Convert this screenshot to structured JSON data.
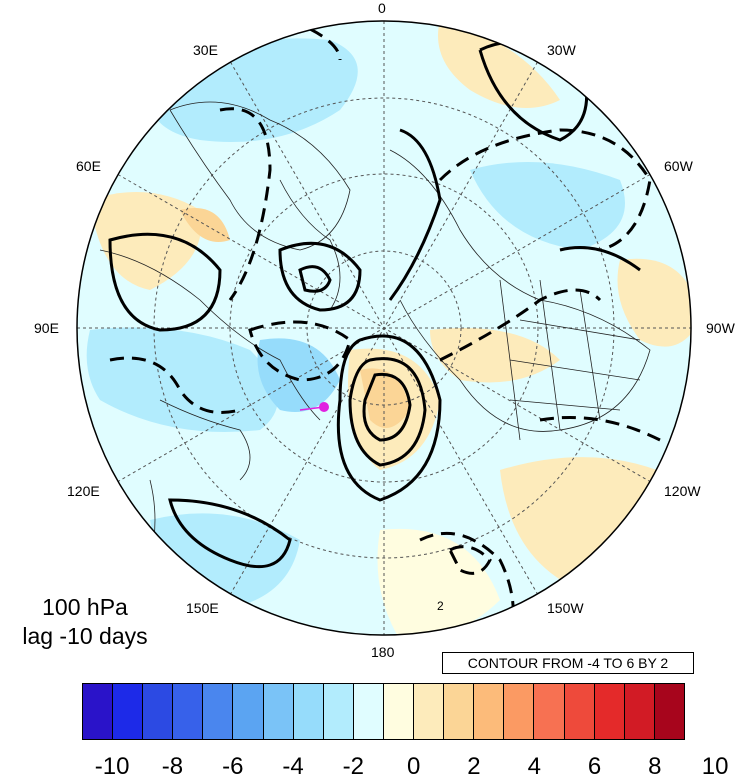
{
  "map": {
    "longitude_labels": [
      "0",
      "30W",
      "60W",
      "90W",
      "120W",
      "150W",
      "180",
      "150E",
      "120E",
      "90E",
      "60E",
      "30E"
    ],
    "marker_color": "#e020e0"
  },
  "title": {
    "line1": "100 hPa",
    "line2": "lag -10 days"
  },
  "contour_info": "CONTOUR FROM -4 TO 6 BY 2",
  "contour_labels": [
    "2"
  ],
  "colorbar": {
    "colors": [
      "#2a13c9",
      "#1d2ae8",
      "#2c4ae3",
      "#3761ea",
      "#4a86ee",
      "#5ba4f2",
      "#7ac3f7",
      "#96dcfb",
      "#b2ecfd",
      "#e0fdff",
      "#fffde0",
      "#fdebbb",
      "#fbd596",
      "#fcbb7a",
      "#fb9a63",
      "#f77152",
      "#ee4a3b",
      "#e42a2a",
      "#d21b25",
      "#a7051c"
    ],
    "tick_labels": [
      "-10",
      "-8",
      "-6",
      "-4",
      "-2",
      "0",
      "2",
      "4",
      "6",
      "8",
      "10"
    ]
  }
}
